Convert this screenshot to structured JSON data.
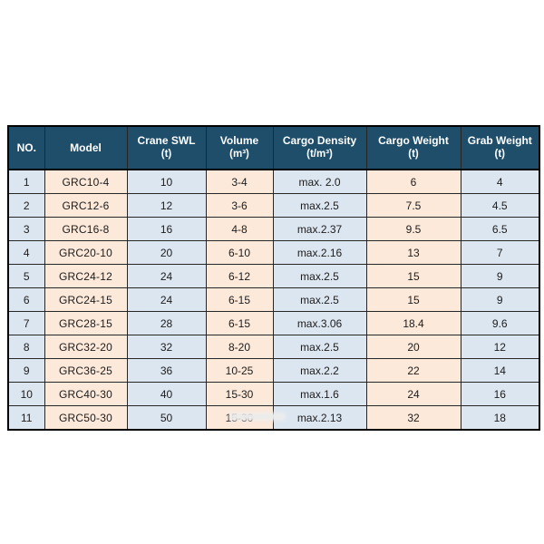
{
  "page": {
    "background": "#ffffff"
  },
  "colors": {
    "header_bg": "#1f4e6b",
    "header_text": "#ffffff",
    "column_tint_blue": "#dce6f1",
    "column_tint_peach": "#fde9d9",
    "border": "#262626",
    "outer_border": "#000000",
    "body_text": "#1c1c1c"
  },
  "table": {
    "columns": [
      {
        "label": "NO.",
        "sublabel": ""
      },
      {
        "label": "Model",
        "sublabel": ""
      },
      {
        "label": "Crane SWL",
        "sublabel": "(t)"
      },
      {
        "label": "Volume",
        "sublabel": "(m³)"
      },
      {
        "label": "Cargo Density",
        "sublabel": "(t/m³)"
      },
      {
        "label": "Cargo Weight",
        "sublabel": "(t)"
      },
      {
        "label": "Grab Weight",
        "sublabel": "(t)"
      }
    ],
    "rows": [
      [
        "1",
        "GRC10-4",
        "10",
        "3-4",
        "max. 2.0",
        "6",
        "4"
      ],
      [
        "2",
        "GRC12-6",
        "12",
        "3-6",
        "max.2.5",
        "7.5",
        "4.5"
      ],
      [
        "3",
        "GRC16-8",
        "16",
        "4-8",
        "max.2.37",
        "9.5",
        "6.5"
      ],
      [
        "4",
        "GRC20-10",
        "20",
        "6-10",
        "max.2.16",
        "13",
        "7"
      ],
      [
        "5",
        "GRC24-12",
        "24",
        "6-12",
        "max.2.5",
        "15",
        "9"
      ],
      [
        "6",
        "GRC24-15",
        "24",
        "6-15",
        "max.2.5",
        "15",
        "9"
      ],
      [
        "7",
        "GRC28-15",
        "28",
        "6-15",
        "max.3.06",
        "18.4",
        "9.6"
      ],
      [
        "8",
        "GRC32-20",
        "32",
        "8-20",
        "max.2.5",
        "20",
        "12"
      ],
      [
        "9",
        "GRC36-25",
        "36",
        "10-25",
        "max.2.2",
        "22",
        "14"
      ],
      [
        "10",
        "GRC40-30",
        "40",
        "15-30",
        "max.1.6",
        "24",
        "16"
      ],
      [
        "11",
        "GRC50-30",
        "50",
        "15-30",
        "max.2.13",
        "32",
        "18"
      ]
    ]
  }
}
